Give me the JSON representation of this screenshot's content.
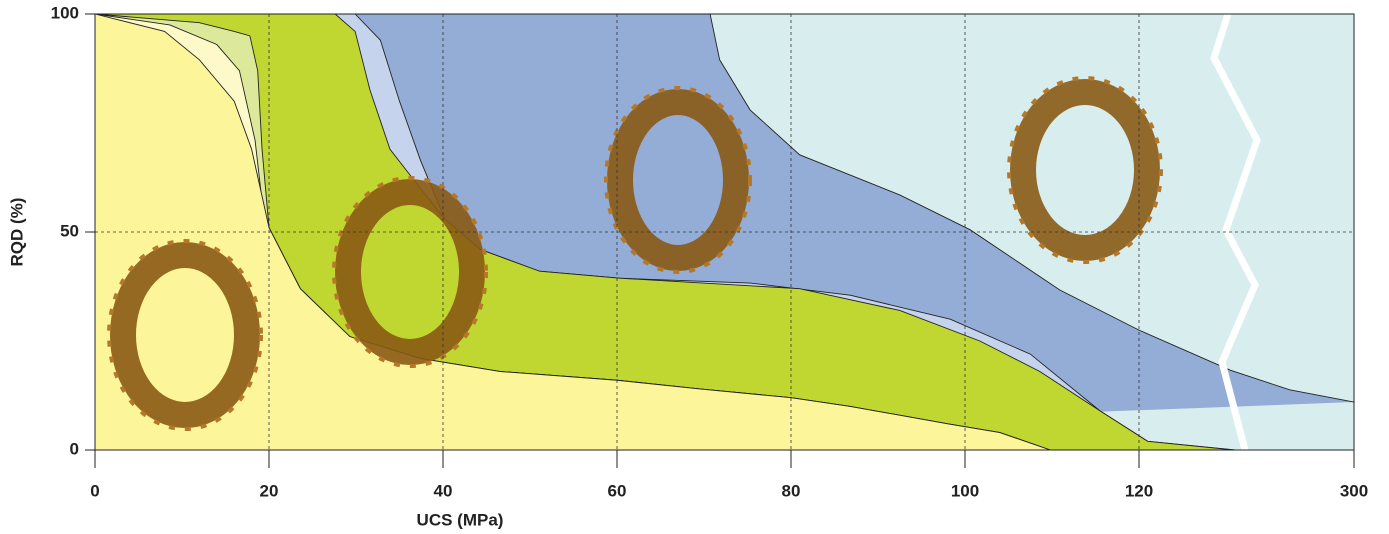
{
  "chart_data": {
    "type": "area",
    "x_label": "UCS (MPa)",
    "y_label": "RQD (%)",
    "xlim": [
      0,
      300
    ],
    "ylim": [
      0,
      100
    ],
    "xticks": [
      0,
      20,
      40,
      60,
      80,
      100,
      120,
      300
    ],
    "yticks": [
      0,
      50,
      100
    ],
    "axis_break": 131,
    "grid": true,
    "plot_color": "#d8eeee",
    "series": [
      {
        "color": "#93add6",
        "x": [
          70.7,
          71.8,
          75.3,
          81,
          92.5,
          100.6,
          110.9,
          120,
          130.5,
          209,
          300
        ],
        "values": [
          100,
          89.5,
          78,
          67.7,
          58.5,
          50.5,
          36.7,
          27.5,
          18.3,
          13.8,
          11
        ]
      },
      {
        "color": "#c5d3ec",
        "x": [
          29.9,
          32.8,
          35,
          37.4,
          40.2,
          44.3,
          51.1,
          60.3,
          75.3,
          86.8,
          98.3,
          107.5,
          115.5,
          121,
          131
        ],
        "values": [
          100,
          94,
          80,
          66.5,
          53,
          46,
          41,
          39.4,
          38.3,
          35.5,
          30,
          22,
          9,
          2,
          0
        ]
      },
      {
        "color": "#bfd730",
        "x": [
          27.6,
          29.9,
          31.6,
          33.9,
          37.4,
          40.2,
          44.3,
          51.1,
          60.3,
          81,
          92.5,
          101.7,
          108.6,
          115.5,
          121,
          131
        ],
        "values": [
          100,
          96,
          82.6,
          69,
          60,
          53,
          46,
          41,
          39.4,
          37,
          32,
          25,
          18,
          9,
          2,
          0
        ]
      },
      {
        "color": "#dde99a",
        "x": [
          0,
          12,
          16,
          17.8,
          18.7,
          19.2,
          20,
          23.6,
          29.3,
          37.4,
          46.6,
          60,
          69.5,
          80,
          86.8,
          98,
          104,
          109.8
        ],
        "values": [
          100,
          98,
          96,
          95,
          87,
          69,
          51,
          37,
          26,
          21,
          18,
          16,
          14,
          12,
          10,
          6,
          4,
          0
        ]
      },
      {
        "color": "#fef9c8",
        "x": [
          0,
          8.6,
          14,
          16.6,
          18.4,
          19.2,
          20,
          23.6,
          29.3,
          37.4,
          46.6,
          60,
          69.5,
          80,
          86.8,
          98,
          104,
          109.8
        ],
        "values": [
          100,
          97.5,
          93,
          87,
          71,
          57,
          51,
          37,
          26,
          21,
          18,
          16,
          14,
          12,
          10,
          6,
          4,
          0
        ]
      },
      {
        "color": "#fdf59a",
        "x": [
          0,
          8,
          12,
          16,
          18,
          20,
          23.6,
          29.3,
          37.4,
          46.6,
          60,
          69.5,
          80,
          86.8,
          98,
          104,
          109.8
        ],
        "values": [
          100,
          96,
          89.5,
          80,
          69,
          51,
          37,
          26,
          21,
          18,
          16,
          14,
          12,
          10,
          6,
          4,
          0
        ]
      }
    ]
  }
}
